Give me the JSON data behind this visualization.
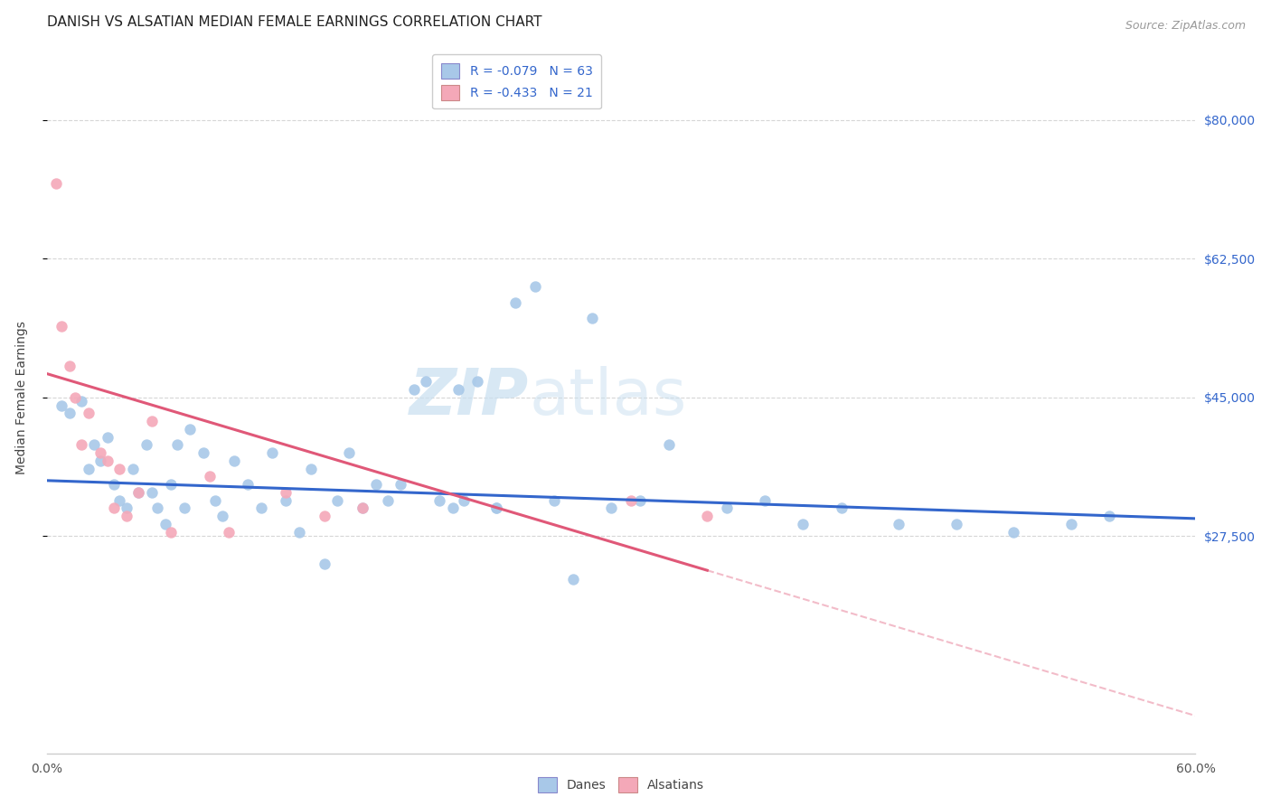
{
  "title": "DANISH VS ALSATIAN MEDIAN FEMALE EARNINGS CORRELATION CHART",
  "source": "Source: ZipAtlas.com",
  "ylabel": "Median Female Earnings",
  "xlim": [
    0.0,
    0.6
  ],
  "ylim": [
    0,
    90000
  ],
  "yticks": [
    27500,
    45000,
    62500,
    80000
  ],
  "ytick_labels": [
    "$27,500",
    "$45,000",
    "$62,500",
    "$80,000"
  ],
  "xticks": [
    0.0,
    0.1,
    0.2,
    0.3,
    0.4,
    0.5,
    0.6
  ],
  "xtick_labels": [
    "0.0%",
    "",
    "",
    "",
    "",
    "",
    "60.0%"
  ],
  "danes_color": "#a8c8e8",
  "alsatians_color": "#f4a8b8",
  "danes_line_color": "#3366cc",
  "alsatians_line_color": "#e05878",
  "background_color": "#ffffff",
  "grid_color": "#cccccc",
  "danes_R": -0.079,
  "danes_N": 63,
  "alsatians_R": -0.433,
  "alsatians_N": 21,
  "danes_x": [
    0.008,
    0.012,
    0.018,
    0.022,
    0.025,
    0.028,
    0.032,
    0.035,
    0.038,
    0.042,
    0.045,
    0.048,
    0.052,
    0.055,
    0.058,
    0.062,
    0.065,
    0.068,
    0.072,
    0.075,
    0.082,
    0.088,
    0.092,
    0.098,
    0.105,
    0.112,
    0.118,
    0.125,
    0.132,
    0.138,
    0.145,
    0.152,
    0.158,
    0.165,
    0.172,
    0.178,
    0.185,
    0.192,
    0.198,
    0.205,
    0.212,
    0.218,
    0.225,
    0.235,
    0.245,
    0.255,
    0.265,
    0.275,
    0.285,
    0.295,
    0.31,
    0.325,
    0.355,
    0.375,
    0.395,
    0.415,
    0.445,
    0.475,
    0.505,
    0.535,
    0.555,
    0.215,
    0.235
  ],
  "danes_y": [
    44000,
    43000,
    44500,
    36000,
    39000,
    37000,
    40000,
    34000,
    32000,
    31000,
    36000,
    33000,
    39000,
    33000,
    31000,
    29000,
    34000,
    39000,
    31000,
    41000,
    38000,
    32000,
    30000,
    37000,
    34000,
    31000,
    38000,
    32000,
    28000,
    36000,
    24000,
    32000,
    38000,
    31000,
    34000,
    32000,
    34000,
    46000,
    47000,
    32000,
    31000,
    32000,
    47000,
    31000,
    57000,
    59000,
    32000,
    22000,
    55000,
    31000,
    32000,
    39000,
    31000,
    32000,
    29000,
    31000,
    29000,
    29000,
    28000,
    29000,
    30000,
    46000,
    31000
  ],
  "alsatians_x": [
    0.005,
    0.008,
    0.012,
    0.015,
    0.018,
    0.022,
    0.028,
    0.032,
    0.035,
    0.038,
    0.042,
    0.048,
    0.055,
    0.065,
    0.085,
    0.095,
    0.125,
    0.145,
    0.165,
    0.305,
    0.345
  ],
  "alsatians_y": [
    72000,
    54000,
    49000,
    45000,
    39000,
    43000,
    38000,
    37000,
    31000,
    36000,
    30000,
    33000,
    42000,
    28000,
    35000,
    28000,
    33000,
    30000,
    31000,
    32000,
    30000
  ],
  "danes_line_intercept": 34500,
  "danes_line_slope": -8000,
  "alsatians_line_intercept": 48000,
  "alsatians_line_slope": -72000,
  "title_fontsize": 11,
  "axis_label_fontsize": 10,
  "tick_fontsize": 10,
  "marker_size": 80,
  "watermark": "ZIPatlas",
  "watermark_zip": "ZIP",
  "watermark_atlas": "atlas"
}
